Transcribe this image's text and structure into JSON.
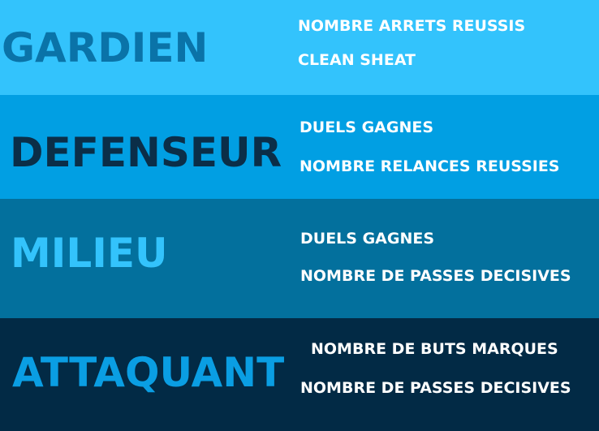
{
  "colors": {
    "band1": "#33c3fc",
    "band2": "#019fe3",
    "band3": "#03709d",
    "band4": "#022a45"
  },
  "positions": [
    {
      "title": "GARDIEN",
      "title_color": "#0a73a8",
      "stats": [
        "NOMBRE ARRETS REUSSIS",
        "CLEAN SHEAT"
      ]
    },
    {
      "title": "DEFENSEUR",
      "title_color": "#0b2e48",
      "stats": [
        "DUELS GAGNES",
        "NOMBRE RELANCES REUSSIES"
      ]
    },
    {
      "title": "MILIEU",
      "title_color": "#33c3fc",
      "stats": [
        "DUELS GAGNES",
        "NOMBRE DE PASSES DECISIVES"
      ]
    },
    {
      "title": "ATTAQUANT",
      "title_color": "#0a9ee3",
      "stats": [
        "NOMBRE DE BUTS MARQUES",
        "NOMBRE DE PASSES DECISIVES"
      ]
    }
  ]
}
